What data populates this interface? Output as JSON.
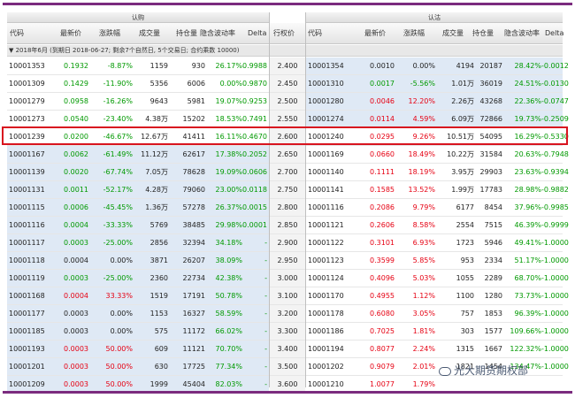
{
  "header": {
    "call_title": "认购",
    "put_title": "认沽",
    "strike_label": "行权价",
    "call_columns": [
      "代码",
      "最新价",
      "涨跌幅",
      "成交量",
      "持仓量",
      "隐含波动率",
      "Delta"
    ],
    "put_columns": [
      "代码",
      "最新价",
      "涨跌幅",
      "成交量",
      "持仓量",
      "隐含波动率",
      "Delta"
    ]
  },
  "expiry_row": "▼ 2018年6月 (到期日 2018-06-27; 剩余7个自然日, 5个交易日; 合约乘数 10000)",
  "rows": [
    {
      "strike": "2.400",
      "call": {
        "code": "10001353",
        "price": "0.1932",
        "chg": "-8.87%",
        "vol": "1159",
        "oi": "930",
        "iv": "26.17%",
        "delta": "0.9988"
      },
      "put": {
        "code": "10001354",
        "price": "0.0010",
        "chg": "0.00%",
        "vol": "4194",
        "oi": "20187",
        "iv": "28.42%",
        "delta": "-0.0012"
      },
      "call_up": false,
      "put_up": null
    },
    {
      "strike": "2.450",
      "call": {
        "code": "10001309",
        "price": "0.1429",
        "chg": "-11.90%",
        "vol": "5356",
        "oi": "6006",
        "iv": "0.00%",
        "delta": "0.9870"
      },
      "put": {
        "code": "10001310",
        "price": "0.0017",
        "chg": "-5.56%",
        "vol": "1.01万",
        "oi": "36019",
        "iv": "24.51%",
        "delta": "-0.0130"
      },
      "call_up": false,
      "put_up": false
    },
    {
      "strike": "2.500",
      "call": {
        "code": "10001279",
        "price": "0.0958",
        "chg": "-16.26%",
        "vol": "9643",
        "oi": "5981",
        "iv": "19.07%",
        "delta": "0.9253"
      },
      "put": {
        "code": "10001280",
        "price": "0.0046",
        "chg": "12.20%",
        "vol": "2.26万",
        "oi": "43268",
        "iv": "22.36%",
        "delta": "-0.0747"
      },
      "call_up": false,
      "put_up": true
    },
    {
      "strike": "2.550",
      "call": {
        "code": "10001273",
        "price": "0.0540",
        "chg": "-23.40%",
        "vol": "4.38万",
        "oi": "15202",
        "iv": "18.53%",
        "delta": "0.7491"
      },
      "put": {
        "code": "10001274",
        "price": "0.0114",
        "chg": "4.59%",
        "vol": "6.09万",
        "oi": "72866",
        "iv": "19.73%",
        "delta": "-0.2509"
      },
      "call_up": false,
      "put_up": true
    },
    {
      "strike": "2.600",
      "call": {
        "code": "10001239",
        "price": "0.0200",
        "chg": "-46.67%",
        "vol": "12.67万",
        "oi": "41411",
        "iv": "16.11%",
        "delta": "0.4670"
      },
      "put": {
        "code": "10001240",
        "price": "0.0295",
        "chg": "9.26%",
        "vol": "10.51万",
        "oi": "54095",
        "iv": "16.29%",
        "delta": "-0.5330"
      },
      "call_up": false,
      "put_up": true
    },
    {
      "strike": "2.650",
      "call": {
        "code": "10001167",
        "price": "0.0062",
        "chg": "-61.49%",
        "vol": "11.12万",
        "oi": "62617",
        "iv": "17.38%",
        "delta": "0.2052"
      },
      "put": {
        "code": "10001169",
        "price": "0.0660",
        "chg": "18.49%",
        "vol": "10.22万",
        "oi": "31584",
        "iv": "20.63%",
        "delta": "-0.7948"
      },
      "call_up": false,
      "put_up": true
    },
    {
      "strike": "2.700",
      "call": {
        "code": "10001139",
        "price": "0.0020",
        "chg": "-67.74%",
        "vol": "7.05万",
        "oi": "78628",
        "iv": "19.09%",
        "delta": "0.0606"
      },
      "put": {
        "code": "10001140",
        "price": "0.1111",
        "chg": "18.19%",
        "vol": "3.95万",
        "oi": "29903",
        "iv": "23.63%",
        "delta": "-0.9394"
      },
      "call_up": false,
      "put_up": true
    },
    {
      "strike": "2.750",
      "call": {
        "code": "10001131",
        "price": "0.0011",
        "chg": "-52.17%",
        "vol": "4.28万",
        "oi": "79060",
        "iv": "23.00%",
        "delta": "0.0118"
      },
      "put": {
        "code": "10001141",
        "price": "0.1585",
        "chg": "13.52%",
        "vol": "1.99万",
        "oi": "17783",
        "iv": "28.98%",
        "delta": "-0.9882"
      },
      "call_up": false,
      "put_up": true
    },
    {
      "strike": "2.800",
      "call": {
        "code": "10001115",
        "price": "0.0006",
        "chg": "-45.45%",
        "vol": "1.36万",
        "oi": "57278",
        "iv": "26.37%",
        "delta": "0.0015"
      },
      "put": {
        "code": "10001116",
        "price": "0.2086",
        "chg": "9.79%",
        "vol": "6177",
        "oi": "8454",
        "iv": "37.96%",
        "delta": "-0.9985"
      },
      "call_up": false,
      "put_up": true
    },
    {
      "strike": "2.850",
      "call": {
        "code": "10001116",
        "price": "0.0004",
        "chg": "-33.33%",
        "vol": "5769",
        "oi": "38485",
        "iv": "29.98%",
        "delta": "0.0001"
      },
      "put": {
        "code": "10001121",
        "price": "0.2606",
        "chg": "8.58%",
        "vol": "2554",
        "oi": "7515",
        "iv": "46.39%",
        "delta": "-0.9999"
      },
      "call_up": false,
      "put_up": true
    },
    {
      "strike": "2.900",
      "call": {
        "code": "10001117",
        "price": "0.0003",
        "chg": "-25.00%",
        "vol": "2856",
        "oi": "32394",
        "iv": "34.18%",
        "delta": "-"
      },
      "put": {
        "code": "10001122",
        "price": "0.3101",
        "chg": "6.93%",
        "vol": "1723",
        "oi": "5946",
        "iv": "49.41%",
        "delta": "-1.0000"
      },
      "call_up": false,
      "put_up": true
    },
    {
      "strike": "2.950",
      "call": {
        "code": "10001118",
        "price": "0.0004",
        "chg": "0.00%",
        "vol": "3871",
        "oi": "26207",
        "iv": "38.09%",
        "delta": "-"
      },
      "put": {
        "code": "10001123",
        "price": "0.3599",
        "chg": "5.85%",
        "vol": "953",
        "oi": "2334",
        "iv": "51.17%",
        "delta": "-1.0000"
      },
      "call_up": null,
      "put_up": true
    },
    {
      "strike": "3.000",
      "call": {
        "code": "10001119",
        "price": "0.0003",
        "chg": "-25.00%",
        "vol": "2360",
        "oi": "22734",
        "iv": "42.38%",
        "delta": "-"
      },
      "put": {
        "code": "10001124",
        "price": "0.4096",
        "chg": "5.03%",
        "vol": "1055",
        "oi": "2289",
        "iv": "68.70%",
        "delta": "-1.0000"
      },
      "call_up": false,
      "put_up": true
    },
    {
      "strike": "3.100",
      "call": {
        "code": "10001168",
        "price": "0.0004",
        "chg": "33.33%",
        "vol": "1519",
        "oi": "17191",
        "iv": "50.78%",
        "delta": "-"
      },
      "put": {
        "code": "10001170",
        "price": "0.4955",
        "chg": "1.12%",
        "vol": "1100",
        "oi": "1280",
        "iv": "73.73%",
        "delta": "-1.0000"
      },
      "call_up": true,
      "put_up": true
    },
    {
      "strike": "3.200",
      "call": {
        "code": "10001177",
        "price": "0.0003",
        "chg": "0.00%",
        "vol": "1153",
        "oi": "16327",
        "iv": "58.59%",
        "delta": "-"
      },
      "put": {
        "code": "10001178",
        "price": "0.6080",
        "chg": "3.05%",
        "vol": "757",
        "oi": "1853",
        "iv": "96.39%",
        "delta": "-1.0000"
      },
      "call_up": null,
      "put_up": true
    },
    {
      "strike": "3.300",
      "call": {
        "code": "10001185",
        "price": "0.0003",
        "chg": "0.00%",
        "vol": "575",
        "oi": "11172",
        "iv": "66.02%",
        "delta": "-"
      },
      "put": {
        "code": "10001186",
        "price": "0.7025",
        "chg": "1.81%",
        "vol": "303",
        "oi": "1577",
        "iv": "109.66%",
        "delta": "-1.0000"
      },
      "call_up": null,
      "put_up": true
    },
    {
      "strike": "3.400",
      "call": {
        "code": "10001193",
        "price": "0.0003",
        "chg": "50.00%",
        "vol": "609",
        "oi": "11121",
        "iv": "70.70%",
        "delta": "-"
      },
      "put": {
        "code": "10001194",
        "price": "0.8077",
        "chg": "2.24%",
        "vol": "1315",
        "oi": "1667",
        "iv": "122.32%",
        "delta": "-1.0000"
      },
      "call_up": true,
      "put_up": true
    },
    {
      "strike": "3.500",
      "call": {
        "code": "10001201",
        "price": "0.0003",
        "chg": "50.00%",
        "vol": "630",
        "oi": "17725",
        "iv": "77.34%",
        "delta": "-"
      },
      "put": {
        "code": "10001202",
        "price": "0.9079",
        "chg": "2.01%",
        "vol": "1821",
        "oi": "1454",
        "iv": "134.47%",
        "delta": "-1.0000"
      },
      "call_up": true,
      "put_up": true
    },
    {
      "strike": "3.600",
      "call": {
        "code": "10001209",
        "price": "0.0003",
        "chg": "50.00%",
        "vol": "1999",
        "oi": "45404",
        "iv": "82.03%",
        "delta": "-"
      },
      "put": {
        "code": "10001210",
        "price": "1.0077",
        "chg": "1.79%",
        "vol": "",
        "oi": "",
        "iv": "",
        "delta": ""
      },
      "call_up": true,
      "put_up": true
    }
  ],
  "watermark": "光大期货期权部",
  "colors": {
    "up": "#e60012",
    "down": "#009900",
    "itm_bg": "#dfe9f5",
    "highlight": "#d8141f",
    "accent_bar": "#7b2b7e"
  }
}
